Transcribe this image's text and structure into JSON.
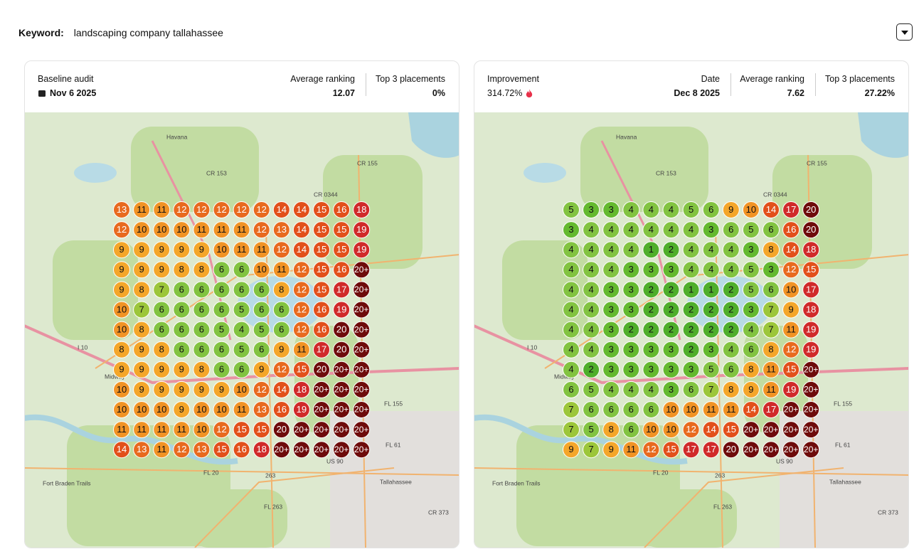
{
  "keyword_label": "Keyword:",
  "keyword": "landscaping company tallahassee",
  "map_labels": [
    "Havana",
    "CR 153",
    "CR 155",
    "CR 0344",
    "I 10",
    "Midway",
    "FL 155",
    "FL 61",
    "US 90",
    "FL 20",
    "263",
    "Tallahassee",
    "FL 263",
    "CR 373",
    "Fort Braden Trails"
  ],
  "panels": [
    {
      "title": "Baseline audit",
      "date": "Nov 6 2025",
      "stats": [
        {
          "label": "Average ranking",
          "value": "12.07"
        },
        {
          "label": "Top 3 placements",
          "value": "0%"
        }
      ],
      "grid": [
        [
          13,
          11,
          11,
          12,
          12,
          12,
          12,
          12,
          14,
          14,
          15,
          16,
          18
        ],
        [
          12,
          10,
          10,
          10,
          11,
          11,
          11,
          12,
          13,
          14,
          15,
          15,
          19
        ],
        [
          9,
          9,
          9,
          9,
          9,
          10,
          11,
          11,
          12,
          14,
          15,
          15,
          19
        ],
        [
          9,
          9,
          9,
          8,
          8,
          6,
          6,
          10,
          11,
          12,
          15,
          16,
          "20+"
        ],
        [
          9,
          8,
          7,
          6,
          6,
          6,
          6,
          6,
          8,
          12,
          15,
          17,
          "20+"
        ],
        [
          10,
          7,
          6,
          6,
          6,
          6,
          5,
          6,
          6,
          12,
          16,
          19,
          "20+"
        ],
        [
          10,
          8,
          6,
          6,
          6,
          5,
          4,
          5,
          6,
          12,
          16,
          20,
          "20+"
        ],
        [
          8,
          9,
          8,
          6,
          6,
          6,
          5,
          6,
          9,
          11,
          17,
          20,
          "20+"
        ],
        [
          9,
          9,
          9,
          9,
          8,
          6,
          6,
          9,
          12,
          15,
          20,
          "20+",
          "20+"
        ],
        [
          10,
          9,
          9,
          9,
          9,
          9,
          10,
          12,
          14,
          18,
          "20+",
          "20+",
          "20+"
        ],
        [
          10,
          10,
          10,
          9,
          10,
          10,
          11,
          13,
          16,
          19,
          "20+",
          "20+",
          "20+"
        ],
        [
          11,
          11,
          11,
          11,
          10,
          12,
          15,
          15,
          20,
          "20+",
          "20+",
          "20+",
          "20+"
        ],
        [
          14,
          13,
          11,
          12,
          13,
          15,
          16,
          18,
          "20+",
          "20+",
          "20+",
          "20+",
          "20+"
        ]
      ]
    },
    {
      "title": "Improvement",
      "value": "314.72%",
      "stats": [
        {
          "label": "Date",
          "value": "Dec 8 2025"
        },
        {
          "label": "Average ranking",
          "value": "7.62"
        },
        {
          "label": "Top 3 placements",
          "value": "27.22%"
        }
      ],
      "grid": [
        [
          5,
          3,
          3,
          4,
          4,
          4,
          5,
          6,
          9,
          10,
          14,
          17,
          20
        ],
        [
          3,
          4,
          4,
          4,
          4,
          4,
          4,
          3,
          6,
          5,
          6,
          16,
          20
        ],
        [
          4,
          4,
          4,
          4,
          1,
          2,
          4,
          4,
          4,
          3,
          8,
          14,
          18
        ],
        [
          4,
          4,
          4,
          3,
          3,
          3,
          4,
          4,
          4,
          5,
          3,
          12,
          15
        ],
        [
          4,
          4,
          3,
          3,
          2,
          2,
          1,
          1,
          2,
          5,
          6,
          10,
          17
        ],
        [
          4,
          4,
          3,
          3,
          2,
          2,
          2,
          2,
          2,
          3,
          7,
          9,
          18
        ],
        [
          4,
          4,
          3,
          2,
          2,
          2,
          2,
          2,
          2,
          4,
          7,
          11,
          19
        ],
        [
          4,
          4,
          3,
          3,
          3,
          3,
          2,
          3,
          4,
          6,
          8,
          12,
          19
        ],
        [
          4,
          2,
          3,
          3,
          3,
          3,
          3,
          5,
          6,
          8,
          11,
          15,
          "20+"
        ],
        [
          6,
          5,
          4,
          4,
          4,
          3,
          6,
          7,
          8,
          9,
          11,
          19,
          "20+"
        ],
        [
          7,
          6,
          6,
          6,
          6,
          10,
          10,
          11,
          11,
          14,
          17,
          "20+",
          "20+"
        ],
        [
          7,
          5,
          8,
          6,
          10,
          10,
          12,
          14,
          15,
          "20+",
          "20+",
          "20+",
          "20+"
        ],
        [
          9,
          7,
          9,
          11,
          12,
          15,
          17,
          17,
          20,
          "20+",
          "20+",
          "20+",
          "20+"
        ]
      ]
    }
  ]
}
